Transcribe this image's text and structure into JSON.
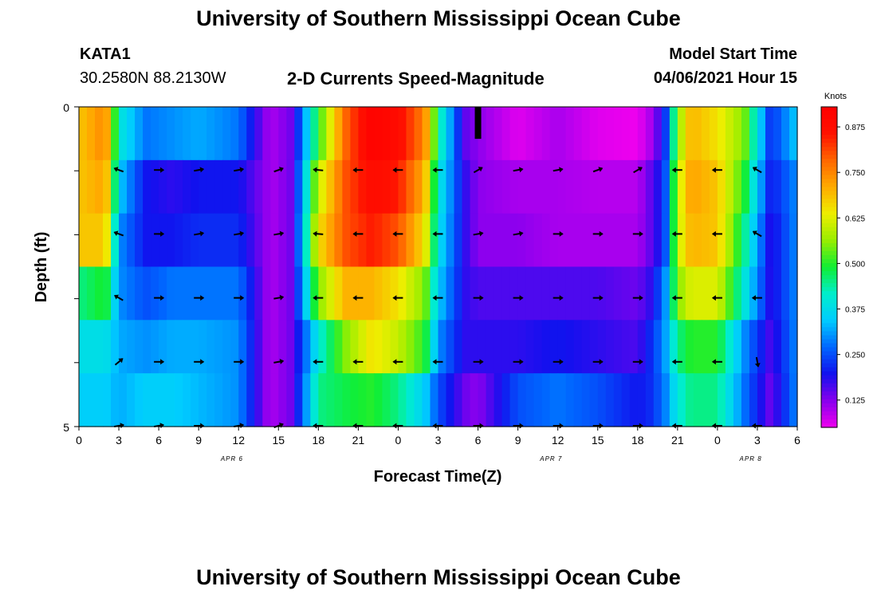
{
  "page": {
    "title_top": "University of Southern Mississippi Ocean Cube",
    "title_bottom": "University of Southern Mississippi Ocean Cube",
    "station": "KATA1",
    "coords": "30.2580N  88.2130W",
    "subtitle": "2-D Currents Speed-Magnitude",
    "model_start_label": "Model Start Time",
    "model_start_value": "04/06/2021 Hour 15"
  },
  "colors": {
    "colormap": [
      "#ee00ee",
      "#8800ee",
      "#1111ee",
      "#0066ff",
      "#00ccff",
      "#00eecc",
      "#11ee33",
      "#99ee00",
      "#eeee00",
      "#ffaa00",
      "#ff6600",
      "#ff1100",
      "#ff0000"
    ]
  },
  "chart_data": {
    "type": "heatmap",
    "title": "2-D Currents Speed-Magnitude",
    "xlabel": "Forecast Time(Z)",
    "ylabel": "Depth (ft)",
    "x_ticks": [
      "0",
      "3",
      "6",
      "9",
      "12",
      "15",
      "18",
      "21",
      "0",
      "3",
      "6",
      "9",
      "12",
      "15",
      "18",
      "21",
      "0",
      "3",
      "6"
    ],
    "x_date_labels": [
      {
        "label": "APR 6",
        "hour": 11.5
      },
      {
        "label": "APR 7",
        "hour": 35.5
      },
      {
        "label": "APR 8",
        "hour": 50.5
      }
    ],
    "x_range_hours": [
      0,
      54
    ],
    "y_ticks": [
      "0",
      "5"
    ],
    "y_range_ft": [
      0,
      5
    ],
    "colorbar": {
      "label": "Knots",
      "range": [
        0.05,
        0.93
      ],
      "ticks": [
        "0.875",
        "0.750",
        "0.625",
        "0.500",
        "0.375",
        "0.250",
        "0.125"
      ],
      "tick_values": [
        0.875,
        0.75,
        0.625,
        0.5,
        0.375,
        0.25,
        0.125
      ]
    },
    "depth_levels_ft": [
      0.25,
      1.0,
      2.0,
      3.0,
      4.0,
      4.75
    ],
    "key_hours": [
      0,
      2,
      3,
      5,
      7,
      9,
      12,
      14,
      14.5,
      16,
      18,
      20,
      22,
      24,
      26,
      27,
      29,
      30,
      33,
      36,
      39,
      42,
      43,
      44,
      45,
      46,
      48,
      50,
      52,
      54
    ],
    "speed_knots_by_depth": [
      [
        0.68,
        0.75,
        0.4,
        0.28,
        0.3,
        0.32,
        0.28,
        0.12,
        0.1,
        0.14,
        0.5,
        0.78,
        0.92,
        0.88,
        0.75,
        0.45,
        0.15,
        0.12,
        0.06,
        0.1,
        0.06,
        0.05,
        0.1,
        0.2,
        0.55,
        0.7,
        0.65,
        0.55,
        0.22,
        0.35
      ],
      [
        0.68,
        0.72,
        0.35,
        0.2,
        0.18,
        0.2,
        0.2,
        0.12,
        0.1,
        0.14,
        0.6,
        0.8,
        0.88,
        0.85,
        0.7,
        0.4,
        0.18,
        0.12,
        0.1,
        0.1,
        0.09,
        0.09,
        0.15,
        0.22,
        0.6,
        0.72,
        0.68,
        0.5,
        0.2,
        0.3
      ],
      [
        0.68,
        0.68,
        0.3,
        0.2,
        0.2,
        0.22,
        0.22,
        0.12,
        0.1,
        0.14,
        0.65,
        0.8,
        0.85,
        0.8,
        0.65,
        0.38,
        0.18,
        0.12,
        0.12,
        0.1,
        0.1,
        0.1,
        0.15,
        0.22,
        0.6,
        0.7,
        0.68,
        0.45,
        0.18,
        0.3
      ],
      [
        0.45,
        0.5,
        0.3,
        0.25,
        0.28,
        0.28,
        0.28,
        0.12,
        0.1,
        0.14,
        0.55,
        0.7,
        0.7,
        0.65,
        0.55,
        0.35,
        0.18,
        0.16,
        0.16,
        0.16,
        0.16,
        0.14,
        0.18,
        0.28,
        0.55,
        0.62,
        0.62,
        0.4,
        0.18,
        0.3
      ],
      [
        0.38,
        0.38,
        0.32,
        0.3,
        0.32,
        0.32,
        0.3,
        0.12,
        0.1,
        0.14,
        0.4,
        0.55,
        0.65,
        0.6,
        0.5,
        0.3,
        0.18,
        0.18,
        0.18,
        0.2,
        0.18,
        0.16,
        0.22,
        0.3,
        0.45,
        0.5,
        0.5,
        0.3,
        0.16,
        0.3
      ],
      [
        0.35,
        0.35,
        0.32,
        0.35,
        0.35,
        0.33,
        0.3,
        0.12,
        0.1,
        0.14,
        0.45,
        0.48,
        0.5,
        0.45,
        0.35,
        0.25,
        0.14,
        0.12,
        0.25,
        0.28,
        0.25,
        0.2,
        0.22,
        0.28,
        0.4,
        0.45,
        0.45,
        0.28,
        0.14,
        0.3
      ]
    ],
    "arrow_hours": [
      3,
      6,
      9,
      12,
      15,
      18,
      21,
      24,
      27,
      30,
      33,
      36,
      39,
      42,
      45,
      48,
      51
    ],
    "arrow_depths_ft": [
      1,
      2,
      3,
      4,
      5
    ],
    "arrow_dir_deg": [
      [
        200,
        0,
        -10,
        -10,
        -20,
        185,
        180,
        180,
        180,
        -30,
        -10,
        -10,
        -20,
        -30,
        180,
        180,
        210
      ],
      [
        200,
        0,
        -10,
        -10,
        -10,
        185,
        180,
        180,
        180,
        -10,
        -10,
        0,
        0,
        0,
        180,
        180,
        210
      ],
      [
        210,
        0,
        0,
        0,
        -10,
        180,
        180,
        180,
        180,
        0,
        0,
        0,
        0,
        0,
        180,
        180,
        180
      ],
      [
        -40,
        0,
        0,
        0,
        -10,
        180,
        180,
        180,
        180,
        0,
        0,
        0,
        0,
        0,
        180,
        180,
        80
      ],
      [
        -10,
        -10,
        0,
        -10,
        -20,
        180,
        180,
        180,
        180,
        0,
        0,
        0,
        0,
        0,
        180,
        180,
        180
      ]
    ],
    "marker": {
      "hour": 30,
      "depth_ft": [
        0,
        0.5
      ]
    }
  }
}
